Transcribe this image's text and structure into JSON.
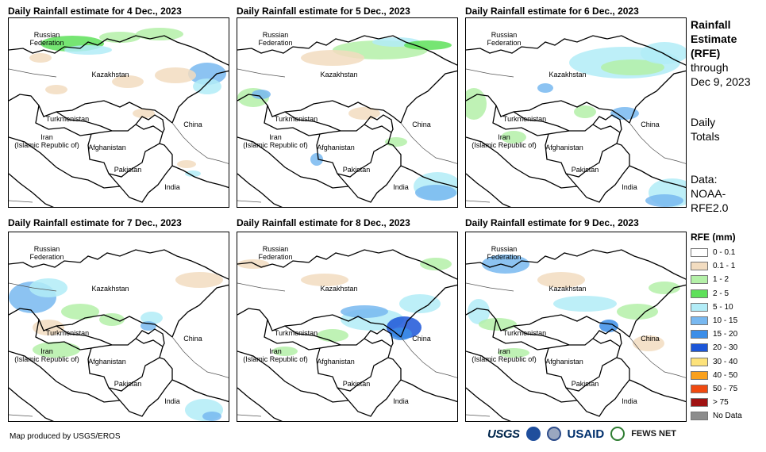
{
  "panels": [
    {
      "title": "Daily Rainfall estimate for 4 Dec., 2023",
      "date": "4 Dec., 2023"
    },
    {
      "title": "Daily Rainfall estimate for 5 Dec., 2023",
      "date": "5 Dec., 2023"
    },
    {
      "title": "Daily Rainfall estimate for 6 Dec., 2023",
      "date": "6 Dec., 2023"
    },
    {
      "title": "Daily Rainfall estimate for 7 Dec., 2023",
      "date": "7 Dec., 2023"
    },
    {
      "title": "Daily Rainfall estimate for 8 Dec., 2023",
      "date": "8 Dec., 2023"
    },
    {
      "title": "Daily Rainfall estimate for 9 Dec., 2023",
      "date": "9 Dec., 2023"
    }
  ],
  "country_labels": {
    "russia": "Russian\nFederation",
    "kazakhstan": "Kazakhstan",
    "turkmenistan": "Turkmenistan",
    "iran": "Iran\n(Islamic Republic of)",
    "afghanistan": "Afghanistan",
    "pakistan": "Pakistan",
    "china": "China",
    "india": "India"
  },
  "sidebar": {
    "title_line1": "Rainfall",
    "title_line2": "Estimate",
    "title_line3": "(RFE)",
    "through_line1": "through",
    "through_line2": "Dec 9, 2023",
    "totals_line1": "Daily",
    "totals_line2": "Totals",
    "data_line1": "Data:",
    "data_line2": "NOAA-",
    "data_line3": "RFE2.0"
  },
  "legend": {
    "title": "RFE (mm)",
    "items": [
      {
        "label": "0 - 0.1",
        "color": "#ffffff"
      },
      {
        "label": "0.1 - 1",
        "color": "#f2dcc0"
      },
      {
        "label": "1 - 2",
        "color": "#b4f0a8"
      },
      {
        "label": "2 - 5",
        "color": "#5ee05a"
      },
      {
        "label": "5 - 10",
        "color": "#b2ecf7"
      },
      {
        "label": "10 - 15",
        "color": "#78b8f0"
      },
      {
        "label": "15 - 20",
        "color": "#3c8ee8"
      },
      {
        "label": "20 - 30",
        "color": "#1c56d8"
      },
      {
        "label": "30 - 40",
        "color": "#fde27a"
      },
      {
        "label": "40 - 50",
        "color": "#f9a01c"
      },
      {
        "label": "50 - 75",
        "color": "#f04a10"
      },
      {
        "label": "> 75",
        "color": "#a01212"
      },
      {
        "label": "No Data",
        "color": "#8c8c8c"
      }
    ]
  },
  "footer": {
    "credit": "Map produced by USGS/EROS",
    "logo_usgs": "USGS",
    "logo_usaid": "USAID",
    "logo_fews": "FEWS NET"
  }
}
